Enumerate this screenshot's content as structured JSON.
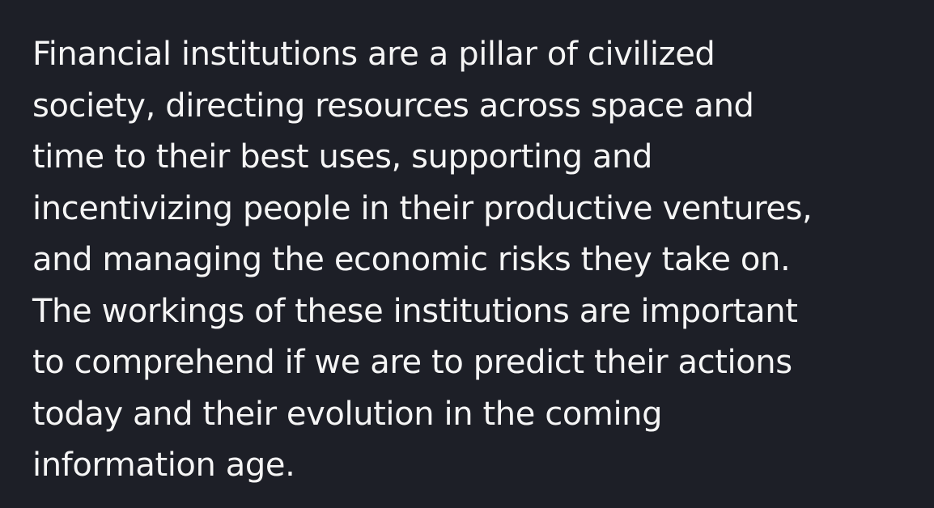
{
  "passage": {
    "lines": [
      "Financial institutions are a pillar of civilized",
      "society, directing resources across space and",
      "time to their best uses, supporting and",
      "incentivizing people in their productive ventures,",
      "and managing the economic risks they take on.",
      "The workings of these institutions are important",
      "to comprehend if we are to predict their actions",
      "today and their evolution in the coming",
      "information age."
    ]
  },
  "colors": {
    "background": "#1d1f27",
    "text": "#f5f5f5"
  }
}
